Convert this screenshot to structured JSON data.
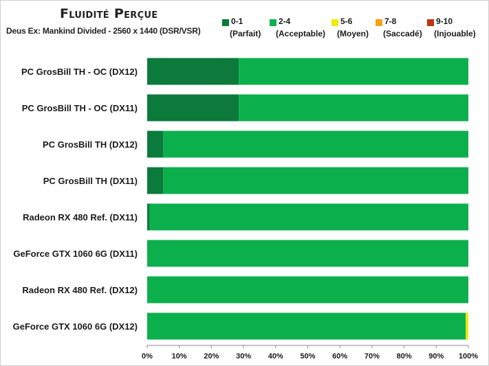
{
  "chart_data": {
    "type": "bar",
    "stacked": true,
    "orientation": "horizontal",
    "title": "Fluidité Perçue",
    "subtitle": "Deus Ex: Mankind Divided - 2560 x 1440 (DSR/VSR)",
    "xlim": [
      0,
      100
    ],
    "x_ticks": [
      "0%",
      "10%",
      "20%",
      "30%",
      "40%",
      "50%",
      "60%",
      "70%",
      "80%",
      "90%",
      "100%"
    ],
    "grid": false,
    "legend_position": "top-right",
    "categories": [
      "PC GrosBill TH - OC (DX12)",
      "PC GrosBill TH - OC (DX11)",
      "PC GrosBill TH (DX12)",
      "PC GrosBill TH (DX11)",
      "Radeon RX 480 Ref. (DX11)",
      "GeForce GTX 1060 6G (DX11)",
      "Radeon RX 480 Ref. (DX12)",
      "GeForce GTX 1060 6G (DX12)"
    ],
    "series": [
      {
        "name": "0-1",
        "label": "(Parfait)",
        "color": "#0b7a3b",
        "values": [
          28.5,
          28.5,
          5,
          5,
          0.8,
          0,
          0,
          0
        ]
      },
      {
        "name": "2-4",
        "label": "(Acceptable)",
        "color": "#0bb04c",
        "values": [
          71.5,
          71.5,
          95,
          95,
          99.2,
          100,
          100,
          99.2
        ]
      },
      {
        "name": "5-6",
        "label": "(Moyen)",
        "color": "#f2ea00",
        "values": [
          0,
          0,
          0,
          0,
          0,
          0,
          0,
          0.8
        ]
      },
      {
        "name": "7-8",
        "label": "(Saccadé)",
        "color": "#f7a21b",
        "values": [
          0,
          0,
          0,
          0,
          0,
          0,
          0,
          0
        ]
      },
      {
        "name": "9-10",
        "label": "(Injouable)",
        "color": "#c0340e",
        "values": [
          0,
          0,
          0,
          0,
          0,
          0,
          0,
          0
        ]
      }
    ]
  }
}
